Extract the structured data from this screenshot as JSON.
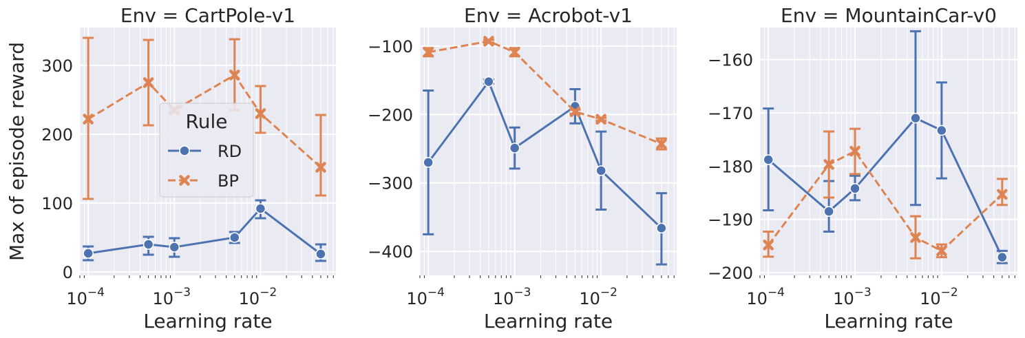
{
  "chart_data": [
    {
      "type": "line",
      "title": "Env = CartPole-v1",
      "xlabel": "Learning rate",
      "ylabel": "Max of episode reward",
      "xscale": "log",
      "xlim": [
        8e-05,
        0.075
      ],
      "ylim": [
        -5,
        355
      ],
      "xticks": [
        0.0001,
        0.001,
        0.01
      ],
      "xtick_labels": [
        [
          "10",
          "−4"
        ],
        [
          "10",
          "−3"
        ],
        [
          "10",
          "−2"
        ]
      ],
      "yticks": [
        0,
        100,
        200,
        300
      ],
      "ytick_labels": [
        "0",
        "100",
        "200",
        "300"
      ],
      "grid": true,
      "x": [
        0.0001,
        0.0005,
        0.001,
        0.005,
        0.01,
        0.05
      ],
      "series": [
        {
          "name": "RD",
          "color": "#4c72b0",
          "marker": "circle",
          "dash": "solid",
          "values": [
            27,
            40,
            36,
            50,
            92,
            26
          ],
          "err_low": [
            17,
            25,
            22,
            42,
            78,
            16
          ],
          "err_high": [
            37,
            51,
            49,
            58,
            104,
            40
          ]
        },
        {
          "name": "BP",
          "color": "#dd8452",
          "marker": "x",
          "dash": "dashed",
          "values": [
            222,
            275,
            235,
            286,
            230,
            152
          ],
          "err_low": [
            106,
            213,
            232,
            235,
            202,
            111
          ],
          "err_high": [
            340,
            337,
            238,
            338,
            270,
            228
          ]
        }
      ],
      "legend": {
        "title": "Rule",
        "placement": "center"
      }
    },
    {
      "type": "line",
      "title": "Env = Acrobot-v1",
      "xlabel": "Learning rate",
      "ylabel": "",
      "xscale": "log",
      "xlim": [
        8e-05,
        0.075
      ],
      "ylim": [
        -435,
        -73
      ],
      "xticks": [
        0.0001,
        0.001,
        0.01
      ],
      "xtick_labels": [
        [
          "10",
          "−4"
        ],
        [
          "10",
          "−3"
        ],
        [
          "10",
          "−2"
        ]
      ],
      "yticks": [
        -400,
        -300,
        -200,
        -100
      ],
      "ytick_labels": [
        "−400",
        "−300",
        "−200",
        "−100"
      ],
      "grid": true,
      "x": [
        0.0001,
        0.0005,
        0.001,
        0.005,
        0.01,
        0.05
      ],
      "series": [
        {
          "name": "RD",
          "color": "#4c72b0",
          "marker": "circle",
          "dash": "solid",
          "values": [
            -270,
            -152,
            -249,
            -188,
            -282,
            -366
          ],
          "err_low": [
            -375,
            -155,
            -279,
            -213,
            -339,
            -419
          ],
          "err_high": [
            -165,
            -149,
            -219,
            -163,
            -225,
            -315
          ]
        },
        {
          "name": "BP",
          "color": "#dd8452",
          "marker": "x",
          "dash": "dashed",
          "values": [
            -109,
            -93,
            -109,
            -196,
            -207,
            -243
          ],
          "err_low": [
            -115,
            -95,
            -115,
            -199,
            -209,
            -251
          ],
          "err_high": [
            -103,
            -91,
            -103,
            -193,
            -205,
            -235
          ]
        }
      ]
    },
    {
      "type": "line",
      "title": "Env = MountainCar-v0",
      "xlabel": "Learning rate",
      "ylabel": "",
      "xscale": "log",
      "xlim": [
        8e-05,
        0.075
      ],
      "ylim": [
        -200.5,
        -154
      ],
      "xticks": [
        0.0001,
        0.001,
        0.01
      ],
      "xtick_labels": [
        [
          "10",
          "−4"
        ],
        [
          "10",
          "−3"
        ],
        [
          "10",
          "−2"
        ]
      ],
      "yticks": [
        -200,
        -190,
        -180,
        -170,
        -160
      ],
      "ytick_labels": [
        "−200",
        "−190",
        "−180",
        "−170",
        "−160"
      ],
      "grid": true,
      "x": [
        0.0001,
        0.0005,
        0.001,
        0.005,
        0.01,
        0.05
      ],
      "series": [
        {
          "name": "RD",
          "color": "#4c72b0",
          "marker": "circle",
          "dash": "solid",
          "values": [
            -178.8,
            -188.5,
            -184.2,
            -171,
            -173.3,
            -197.1
          ],
          "err_low": [
            -188.3,
            -192.3,
            -186.4,
            -187.3,
            -182.3,
            -198.2
          ],
          "err_high": [
            -169.2,
            -182.8,
            -181.8,
            -154.7,
            -164.3,
            -195.9
          ]
        },
        {
          "name": "BP",
          "color": "#dd8452",
          "marker": "x",
          "dash": "dashed",
          "values": [
            -194.8,
            -179.7,
            -177.2,
            -193.4,
            -195.9,
            -185.3
          ],
          "err_low": [
            -197,
            -185.9,
            -181.5,
            -197.3,
            -197.1,
            -187.3
          ],
          "err_high": [
            -192.3,
            -173.5,
            -173,
            -189.4,
            -194.7,
            -182.4
          ]
        }
      ]
    }
  ]
}
